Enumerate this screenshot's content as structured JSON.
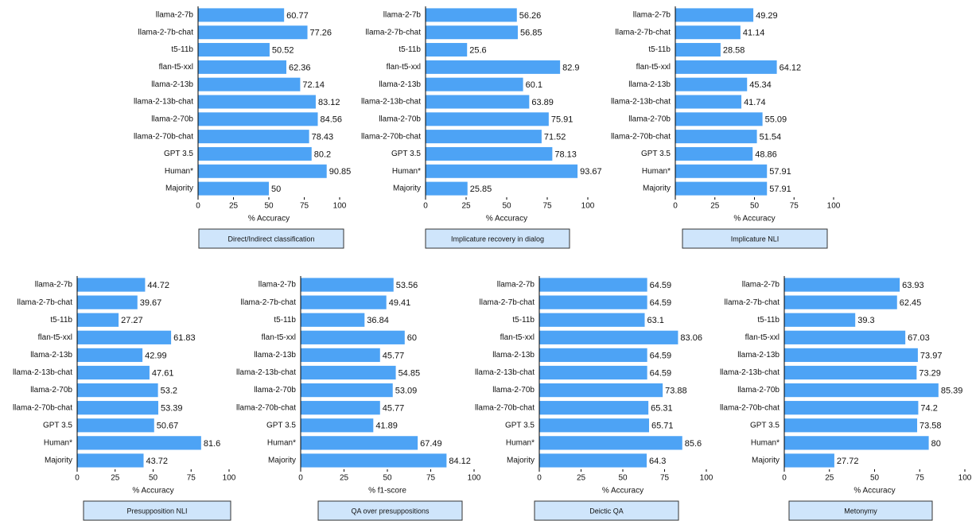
{
  "chart_data": [
    {
      "type": "barh",
      "title": "Direct/Indirect classification",
      "xlabel": "% Accuracy",
      "color": "#4da3f5",
      "categories": [
        "llama-2-7b",
        "llama-2-7b-chat",
        "t5-11b",
        "flan-t5-xxl",
        "llama-2-13b",
        "llama-2-13b-chat",
        "llama-2-70b",
        "llama-2-70b-chat",
        "GPT 3.5",
        "Human*",
        "Majority"
      ],
      "values": [
        60.77,
        77.26,
        50.52,
        62.36,
        72.14,
        83.12,
        84.56,
        78.43,
        80.2,
        90.85,
        50
      ],
      "xlim": [
        0,
        100
      ],
      "xticks": [
        0,
        25,
        50,
        75,
        100
      ]
    },
    {
      "type": "barh",
      "title": "Implicature recovery in dialog",
      "xlabel": "% Accuracy",
      "color": "#4da3f5",
      "categories": [
        "llama-2-7b",
        "llama-2-7b-chat",
        "t5-11b",
        "flan-t5-xxl",
        "llama-2-13b",
        "llama-2-13b-chat",
        "llama-2-70b",
        "llama-2-70b-chat",
        "GPT 3.5",
        "Human*",
        "Majority"
      ],
      "values": [
        56.26,
        56.85,
        25.6,
        82.9,
        60.1,
        63.89,
        75.91,
        71.52,
        78.13,
        93.67,
        25.85
      ],
      "xlim": [
        0,
        100
      ],
      "xticks": [
        0,
        25,
        50,
        75,
        100
      ]
    },
    {
      "type": "barh",
      "title": "Implicature NLI",
      "xlabel": "% Accuracy",
      "color": "#4da3f5",
      "categories": [
        "llama-2-7b",
        "llama-2-7b-chat",
        "t5-11b",
        "flan-t5-xxl",
        "llama-2-13b",
        "llama-2-13b-chat",
        "llama-2-70b",
        "llama-2-70b-chat",
        "GPT 3.5",
        "Human*",
        "Majority"
      ],
      "values": [
        49.29,
        41.14,
        28.58,
        64.12,
        45.34,
        41.74,
        55.09,
        51.54,
        48.86,
        57.91,
        57.91
      ],
      "xlim": [
        0,
        100
      ],
      "xticks": [
        0,
        25,
        50,
        75,
        100
      ]
    },
    {
      "type": "barh",
      "title": "Presupposition NLI",
      "xlabel": "% Accuracy",
      "color": "#4da3f5",
      "categories": [
        "llama-2-7b",
        "llama-2-7b-chat",
        "t5-11b",
        "flan-t5-xxl",
        "llama-2-13b",
        "llama-2-13b-chat",
        "llama-2-70b",
        "llama-2-70b-chat",
        "GPT 3.5",
        "Human*",
        "Majority"
      ],
      "values": [
        44.72,
        39.67,
        27.27,
        61.83,
        42.99,
        47.61,
        53.2,
        53.39,
        50.67,
        81.6,
        43.72
      ],
      "xlim": [
        0,
        100
      ],
      "xticks": [
        0,
        25,
        50,
        75,
        100
      ]
    },
    {
      "type": "barh",
      "title": "QA over presuppositions",
      "xlabel": "% f1-score",
      "color": "#4da3f5",
      "categories": [
        "llama-2-7b",
        "llama-2-7b-chat",
        "t5-11b",
        "flan-t5-xxl",
        "llama-2-13b",
        "llama-2-13b-chat",
        "llama-2-70b",
        "llama-2-70b-chat",
        "GPT 3.5",
        "Human*",
        "Majority"
      ],
      "values": [
        53.56,
        49.41,
        36.84,
        60,
        45.77,
        54.85,
        53.09,
        45.77,
        41.89,
        67.49,
        84.12
      ],
      "xlim": [
        0,
        100
      ],
      "xticks": [
        0,
        25,
        50,
        75,
        100
      ]
    },
    {
      "type": "barh",
      "title": "Deictic QA",
      "xlabel": "% Accuracy",
      "color": "#4da3f5",
      "categories": [
        "llama-2-7b",
        "llama-2-7b-chat",
        "t5-11b",
        "flan-t5-xxl",
        "llama-2-13b",
        "llama-2-13b-chat",
        "llama-2-70b",
        "llama-2-70b-chat",
        "GPT 3.5",
        "Human*",
        "Majority"
      ],
      "values": [
        64.59,
        64.59,
        63.1,
        83.06,
        64.59,
        64.59,
        73.88,
        65.31,
        65.71,
        85.6,
        64.3
      ],
      "xlim": [
        0,
        100
      ],
      "xticks": [
        0,
        25,
        50,
        75,
        100
      ]
    },
    {
      "type": "barh",
      "title": "Metonymy",
      "xlabel": "% Accuracy",
      "color": "#4da3f5",
      "categories": [
        "llama-2-7b",
        "llama-2-7b-chat",
        "t5-11b",
        "flan-t5-xxl",
        "llama-2-13b",
        "llama-2-13b-chat",
        "llama-2-70b",
        "llama-2-70b-chat",
        "GPT 3.5",
        "Human*",
        "Majority"
      ],
      "values": [
        63.93,
        62.45,
        39.3,
        67.03,
        73.97,
        73.29,
        85.39,
        74.2,
        73.58,
        80,
        27.72
      ],
      "xlim": [
        0,
        100
      ],
      "xticks": [
        0,
        25,
        50,
        75,
        100
      ]
    }
  ]
}
